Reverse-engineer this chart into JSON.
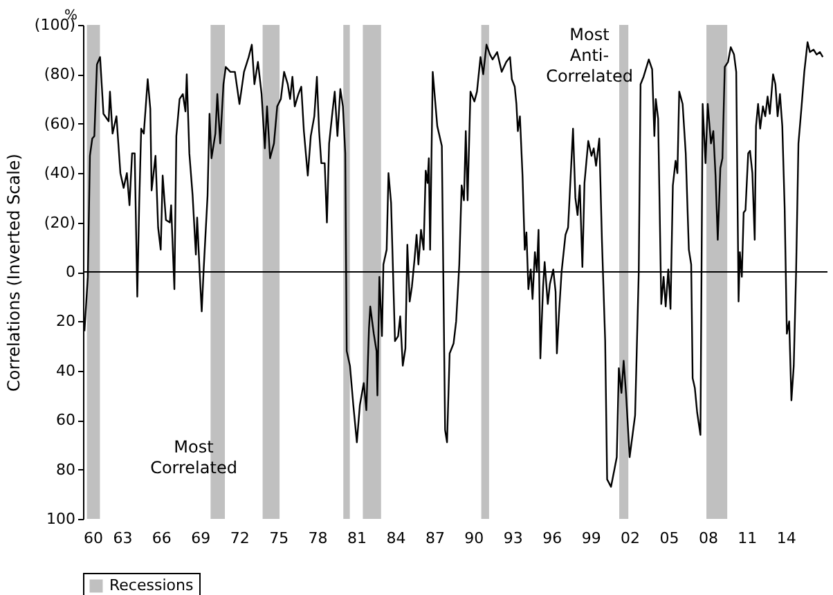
{
  "chart_data": {
    "type": "line",
    "ylabel": "Correlations (Inverted Scale)",
    "annotations": [
      "%",
      "Most Correlated",
      "Most Anti-Correlated"
    ],
    "x": [
      1960.11,
      1960.37,
      1960.53,
      1960.71,
      1960.87,
      1961.07,
      1961.31,
      1961.57,
      1961.97,
      1962.07,
      1962.27,
      1962.57,
      1962.87,
      1963.12,
      1963.37,
      1963.57,
      1963.77,
      1963.97,
      1964.17,
      1964.32,
      1964.47,
      1964.67,
      1964.97,
      1965.17,
      1965.27,
      1965.57,
      1965.77,
      1965.97,
      1966.12,
      1966.37,
      1966.67,
      1966.77,
      1967.02,
      1967.17,
      1967.42,
      1967.67,
      1967.87,
      1967.97,
      1968.17,
      1968.42,
      1968.67,
      1968.77,
      1968.97,
      1969.12,
      1969.27,
      1969.57,
      1969.72,
      1969.87,
      1970.17,
      1970.32,
      1970.54,
      1970.79,
      1970.97,
      1971.32,
      1971.67,
      1972.02,
      1972.37,
      1972.73,
      1972.97,
      1973.17,
      1973.44,
      1973.72,
      1973.97,
      1974.14,
      1974.37,
      1974.67,
      1974.92,
      1975.2,
      1975.45,
      1975.73,
      1975.91,
      1976.09,
      1976.27,
      1976.55,
      1976.77,
      1976.97,
      1977.27,
      1977.5,
      1977.77,
      1977.97,
      1978.14,
      1978.31,
      1978.57,
      1978.74,
      1978.91,
      1979.17,
      1979.34,
      1979.55,
      1979.77,
      1979.97,
      1980.15,
      1980.26,
      1980.51,
      1980.77,
      1981.04,
      1981.27,
      1981.57,
      1981.77,
      1981.97,
      1982.07,
      1982.34,
      1982.55,
      1982.62,
      1982.77,
      1982.97,
      1983.08,
      1983.33,
      1983.47,
      1983.67,
      1983.97,
      1984.21,
      1984.37,
      1984.57,
      1984.77,
      1984.92,
      1985.1,
      1985.27,
      1985.47,
      1985.63,
      1985.77,
      1985.97,
      1986.17,
      1986.33,
      1986.47,
      1986.57,
      1986.67,
      1986.87,
      1987.22,
      1987.57,
      1987.82,
      1987.97,
      1988.17,
      1988.47,
      1988.67,
      1988.91,
      1989.09,
      1989.27,
      1989.41,
      1989.55,
      1989.77,
      1990.07,
      1990.27,
      1990.54,
      1990.75,
      1991.0,
      1991.27,
      1991.47,
      1991.82,
      1992.17,
      1992.52,
      1992.81,
      1992.95,
      1993.17,
      1993.3,
      1993.41,
      1993.57,
      1993.77,
      1993.94,
      1994.07,
      1994.22,
      1994.4,
      1994.54,
      1994.72,
      1994.87,
      1995.0,
      1995.14,
      1995.35,
      1995.47,
      1995.71,
      1995.87,
      1996.13,
      1996.31,
      1996.41,
      1996.57,
      1996.77,
      1997.07,
      1997.27,
      1997.47,
      1997.65,
      1997.83,
      1998.0,
      1998.17,
      1998.37,
      1998.53,
      1998.82,
      1999.07,
      1999.24,
      1999.42,
      1999.67,
      1999.87,
      2000.12,
      2000.27,
      2000.57,
      2000.83,
      2001.01,
      2001.17,
      2001.37,
      2001.54,
      2001.72,
      2002.0,
      2002.42,
      2002.7,
      2002.84,
      2003.07,
      2003.3,
      2003.47,
      2003.73,
      2003.9,
      2004.01,
      2004.19,
      2004.43,
      2004.61,
      2004.77,
      2004.97,
      2005.14,
      2005.32,
      2005.53,
      2005.67,
      2005.81,
      2006.07,
      2006.31,
      2006.55,
      2006.73,
      2006.84,
      2007.01,
      2007.19,
      2007.44,
      2007.61,
      2007.83,
      2008.0,
      2008.25,
      2008.43,
      2008.6,
      2008.77,
      2008.97,
      2009.13,
      2009.31,
      2009.56,
      2009.77,
      2010.02,
      2010.19,
      2010.37,
      2010.47,
      2010.62,
      2010.76,
      2010.9,
      2011.11,
      2011.25,
      2011.43,
      2011.61,
      2011.71,
      2011.87,
      2012.03,
      2012.24,
      2012.42,
      2012.6,
      2012.77,
      2013.02,
      2013.2,
      2013.37,
      2013.55,
      2013.73,
      2013.91,
      2014.08,
      2014.26,
      2014.43,
      2014.61,
      2014.79,
      2014.97,
      2015.21,
      2015.42,
      2015.67,
      2015.85,
      2016.13,
      2016.37,
      2016.62,
      2016.84
    ],
    "series": [
      {
        "color": "#000000",
        "values": [
          24,
          2,
          -47,
          -54,
          -55,
          -84,
          -87,
          -64,
          -61,
          -73,
          -56,
          -63,
          -40,
          -34,
          -40,
          -27,
          -48,
          -48,
          10,
          -28,
          -58,
          -56,
          -78,
          -66,
          -33,
          -47,
          -18,
          -9,
          -39,
          -21,
          -20,
          -27,
          7,
          -55,
          -70,
          -72,
          -65,
          -80,
          -48,
          -31,
          -7,
          -22,
          1,
          16,
          -1,
          -31,
          -64,
          -46,
          -56,
          -72,
          -52,
          -76,
          -83,
          -81,
          -81,
          -68,
          -81,
          -87,
          -92,
          -76,
          -85,
          -72,
          -50,
          -67,
          -46,
          -52,
          -67,
          -70,
          -81,
          -76,
          -70,
          -79,
          -67,
          -72,
          -75,
          -57,
          -39,
          -55,
          -63,
          -79,
          -57,
          -44,
          -44,
          -20,
          -52,
          -65,
          -73,
          -55,
          -74,
          -67,
          -48,
          32,
          38,
          54,
          69,
          54,
          45,
          56,
          23,
          14,
          25,
          32,
          50,
          2,
          26,
          -3,
          -9,
          -40,
          -28,
          28,
          26,
          18,
          38,
          31,
          -11,
          12,
          6,
          -5,
          -15,
          -3,
          -17,
          -9,
          -41,
          -36,
          -46,
          -9,
          -81,
          -59,
          -51,
          64,
          69,
          33,
          29,
          20,
          -3,
          -35,
          -29,
          -57,
          -29,
          -73,
          -69,
          -73,
          -87,
          -80,
          -92,
          -88,
          -86,
          -89,
          -81,
          -85,
          -87,
          -78,
          -75,
          -68,
          -57,
          -63,
          -39,
          -9,
          -16,
          7,
          -1,
          11,
          -8,
          0,
          -17,
          35,
          6,
          -4,
          13,
          5,
          -1,
          8,
          33,
          17,
          0,
          -15,
          -18,
          -39,
          -58,
          -30,
          -23,
          -35,
          -2,
          -36,
          -53,
          -47,
          -50,
          -43,
          -54,
          -13,
          28,
          84,
          87,
          80,
          75,
          39,
          49,
          36,
          49,
          75,
          58,
          0,
          -76,
          -79,
          -83,
          -86,
          -82,
          -55,
          -70,
          -62,
          13,
          2,
          14,
          -1,
          15,
          -35,
          -45,
          -40,
          -73,
          -68,
          -48,
          -9,
          -3,
          43,
          47,
          57,
          66,
          -68,
          -44,
          -68,
          -52,
          -57,
          -39,
          -13,
          -42,
          -46,
          -83,
          -85,
          -91,
          -88,
          -81,
          12,
          -8,
          2,
          -24,
          -25,
          -48,
          -49,
          -40,
          -13,
          -59,
          -68,
          -58,
          -67,
          -63,
          -71,
          -64,
          -80,
          -76,
          -63,
          -72,
          -59,
          -26,
          25,
          20,
          52,
          38,
          0,
          -52,
          -67,
          -81,
          -93,
          -89,
          -90,
          -88,
          -89,
          -87
        ]
      }
    ],
    "xlim": [
      1960,
      2017.2
    ],
    "xticks": [
      {
        "value": 1960,
        "label": "60"
      },
      {
        "value": 1963,
        "label": "63"
      },
      {
        "value": 1966,
        "label": "66"
      },
      {
        "value": 1969,
        "label": "69"
      },
      {
        "value": 1972,
        "label": "72"
      },
      {
        "value": 1975,
        "label": "75"
      },
      {
        "value": 1978,
        "label": "78"
      },
      {
        "value": 1981,
        "label": "81"
      },
      {
        "value": 1984,
        "label": "84"
      },
      {
        "value": 1987,
        "label": "87"
      },
      {
        "value": 1990,
        "label": "90"
      },
      {
        "value": 1993,
        "label": "93"
      },
      {
        "value": 1996,
        "label": "96"
      },
      {
        "value": 1999,
        "label": "99"
      },
      {
        "value": 2002,
        "label": "02"
      },
      {
        "value": 2005,
        "label": "05"
      },
      {
        "value": 2008,
        "label": "08"
      },
      {
        "value": 2011,
        "label": "11"
      },
      {
        "value": 2014,
        "label": "14"
      }
    ],
    "ylim": [
      100,
      -100
    ],
    "yticks": [
      {
        "value": -100,
        "label": "(100)"
      },
      {
        "value": -80,
        "label": "(80)"
      },
      {
        "value": -60,
        "label": "(60)"
      },
      {
        "value": -40,
        "label": "(40)"
      },
      {
        "value": -20,
        "label": "(20)"
      },
      0,
      20,
      40,
      60,
      80,
      100
    ],
    "ref_lines": [
      {
        "axis": "y",
        "value": 0,
        "color": "#000000"
      }
    ],
    "bands": [
      {
        "axis": "x",
        "from": 1960.3,
        "to": 1961.3,
        "label": "Recessions",
        "color": "#c0c0c0"
      },
      {
        "axis": "x",
        "from": 1969.8,
        "to": 1970.9,
        "color": "#c0c0c0"
      },
      {
        "axis": "x",
        "from": 1973.8,
        "to": 1975.1,
        "color": "#c0c0c0"
      },
      {
        "axis": "x",
        "from": 1980.0,
        "to": 1980.5,
        "color": "#c0c0c0"
      },
      {
        "axis": "x",
        "from": 1981.5,
        "to": 1982.9,
        "color": "#c0c0c0"
      },
      {
        "axis": "x",
        "from": 1990.6,
        "to": 1991.2,
        "color": "#c0c0c0"
      },
      {
        "axis": "x",
        "from": 2001.2,
        "to": 2001.9,
        "color": "#c0c0c0"
      },
      {
        "axis": "x",
        "from": 2007.9,
        "to": 2009.5,
        "color": "#c0c0c0"
      }
    ],
    "legend": "bottom",
    "grid": false
  }
}
